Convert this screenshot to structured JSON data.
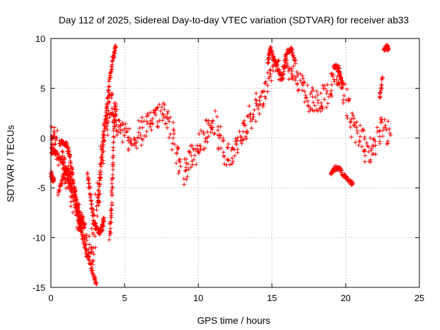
{
  "chart_data": {
    "type": "scatter",
    "title": "Day 112 of 2025, Sidereal Day-to-day VTEC variation (SDTVAR) for receiver ab33",
    "xlabel": "GPS time / hours",
    "ylabel": "SDTVAR / TECUs",
    "xlim": [
      0,
      25
    ],
    "ylim": [
      -15,
      10
    ],
    "x_ticks": [
      0,
      5,
      10,
      15,
      20,
      25
    ],
    "x_tick_labels": [
      "0",
      "5",
      "10",
      "15",
      "20",
      "25"
    ],
    "y_ticks": [
      -15,
      -10,
      -5,
      0,
      5,
      10
    ],
    "y_tick_labels": [
      "-15",
      "-10",
      "-5",
      "0",
      "5",
      "10"
    ],
    "grid": true,
    "marker": "+",
    "series": [
      {
        "name": "SDTVAR",
        "color": "#ff0000",
        "trend": {
          "x": [
            0.0,
            0.2,
            0.5,
            0.8,
            1.0,
            1.2,
            1.5,
            1.8,
            2.0,
            2.2,
            2.5,
            2.8,
            3.0,
            3.3,
            3.5,
            3.8,
            4.0,
            4.2,
            4.5,
            5.0,
            5.5,
            6.0,
            6.5,
            7.0,
            7.5,
            8.0,
            8.5,
            9.0,
            9.5,
            10.0,
            10.5,
            11.0,
            11.5,
            12.0,
            12.5,
            13.0,
            13.5,
            14.0,
            14.5,
            15.0,
            15.5,
            16.0,
            16.5,
            17.0,
            17.5,
            18.0,
            18.5,
            19.0,
            19.5,
            20.0,
            20.5,
            21.0,
            21.5,
            22.0,
            22.5,
            23.0
          ],
          "y": [
            0.3,
            0.0,
            -1.0,
            -2.0,
            -3.5,
            -4.5,
            -6.0,
            -7.5,
            -8.5,
            -9.5,
            -11.0,
            -12.0,
            -8.0,
            -5.0,
            -1.0,
            2.0,
            3.5,
            3.0,
            1.5,
            0.5,
            -0.5,
            0.5,
            1.5,
            2.0,
            2.5,
            1.5,
            -1.0,
            -3.5,
            -2.0,
            -1.0,
            0.5,
            2.0,
            -0.5,
            -2.0,
            -1.0,
            0.5,
            2.0,
            3.5,
            4.5,
            7.0,
            6.5,
            7.5,
            6.0,
            5.5,
            4.0,
            3.5,
            4.0,
            5.0,
            6.5,
            4.0,
            1.0,
            0.0,
            -1.5,
            -0.5,
            1.0,
            0.5
          ]
        },
        "segments": [
          {
            "x": [
              0.0,
              0.35,
              0.8,
              1.2,
              1.6,
              2.0,
              2.4,
              2.8,
              3.1
            ],
            "y": [
              -1.3,
              -1.5,
              -2.5,
              -4.0,
              -6.5,
              -9.0,
              -11.5,
              -13.5,
              -14.7
            ]
          },
          {
            "x": [
              0.0,
              0.1,
              0.2
            ],
            "y": [
              -3.5,
              -4.0,
              -4.3
            ]
          },
          {
            "x": [
              0.5,
              0.8,
              1.2,
              1.6,
              2.0,
              2.3
            ],
            "y": [
              -5.5,
              -4.0,
              -3.0,
              -5.5,
              -8.0,
              -9.0
            ]
          },
          {
            "x": [
              0.7,
              0.9,
              1.1,
              1.3,
              1.5,
              1.7,
              1.9,
              2.1
            ],
            "y": [
              -0.3,
              -0.5,
              -0.8,
              -2.0,
              -4.0,
              -6.0,
              -8.0,
              -9.5
            ]
          },
          {
            "x": [
              2.5,
              2.7,
              2.9,
              3.1,
              3.3,
              3.5,
              3.6
            ],
            "y": [
              -3.5,
              -6.0,
              -8.5,
              -9.0,
              -9.5,
              -9.0,
              -8.0
            ]
          },
          {
            "x": [
              3.2,
              3.4,
              3.6,
              3.8,
              4.0,
              4.2,
              4.4
            ],
            "y": [
              -6.5,
              -3.0,
              0.5,
              3.5,
              6.0,
              8.0,
              9.2
            ]
          },
          {
            "x": [
              4.0,
              4.1,
              4.2,
              4.3,
              4.4
            ],
            "y": [
              -10.0,
              -7.0,
              -3.0,
              1.0,
              3.5
            ]
          },
          {
            "x": [
              14.7,
              14.9,
              15.1,
              15.4,
              15.7,
              16.0,
              16.3,
              16.6
            ],
            "y": [
              7.5,
              9.2,
              8.0,
              7.0,
              6.0,
              8.5,
              9.0,
              7.5
            ]
          },
          {
            "x": [
              19.0,
              19.3,
              19.6,
              19.9,
              20.2,
              20.5
            ],
            "y": [
              -3.5,
              -3.0,
              -3.2,
              -3.8,
              -4.3,
              -4.6
            ]
          },
          {
            "x": [
              19.2,
              19.4,
              19.6,
              19.8
            ],
            "y": [
              7.0,
              7.3,
              6.5,
              5.5
            ]
          },
          {
            "x": [
              22.3,
              22.5
            ],
            "y": [
              4.0,
              6.0
            ]
          },
          {
            "x": [
              22.6,
              22.8,
              22.9
            ],
            "y": [
              8.8,
              9.2,
              9.0
            ]
          }
        ]
      }
    ]
  }
}
